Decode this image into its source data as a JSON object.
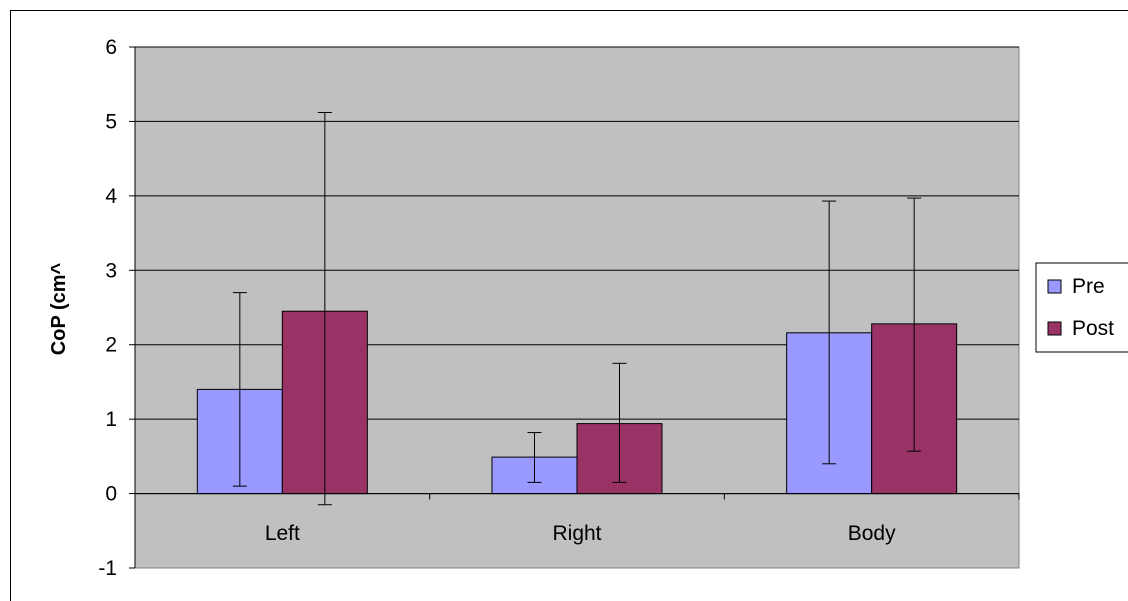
{
  "colors": {
    "plot_area": "#C0C0C0",
    "pre": "#9999FF",
    "post": "#993366",
    "grid": "#000000",
    "background": "#FFFFFF"
  },
  "chart_data": {
    "type": "bar",
    "title": "",
    "xlabel": "",
    "ylabel": "CoP (cm^",
    "ylim": [
      -1,
      6
    ],
    "yticks": [
      "-1",
      "0",
      "1",
      "2",
      "3",
      "4",
      "5",
      "6"
    ],
    "categories": [
      "Left",
      "Right",
      "Body"
    ],
    "grid": true,
    "legend_position": "right",
    "series": [
      {
        "name": "Pre",
        "values": [
          1.4,
          0.49,
          2.16
        ],
        "error_low": [
          0.1,
          0.15,
          0.4
        ],
        "error_high": [
          2.7,
          0.82,
          3.93
        ]
      },
      {
        "name": "Post",
        "values": [
          2.45,
          0.94,
          2.28
        ],
        "error_low": [
          -0.15,
          0.15,
          0.57
        ],
        "error_high": [
          5.12,
          1.75,
          3.97
        ]
      }
    ]
  }
}
